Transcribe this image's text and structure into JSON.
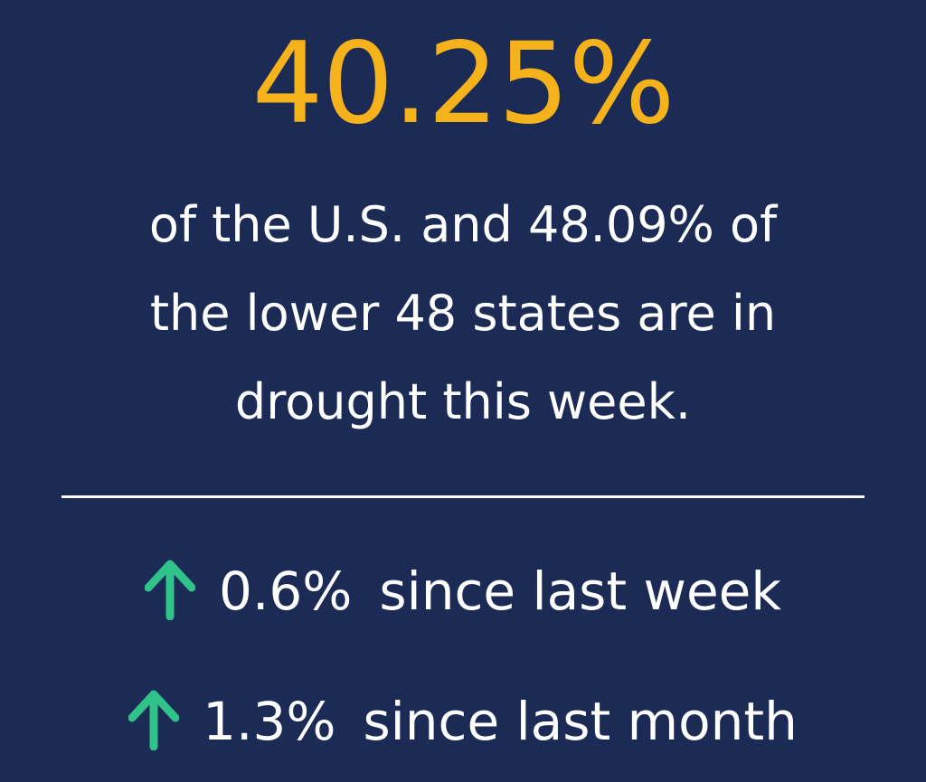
{
  "headline": {
    "value": "40.25%"
  },
  "description": {
    "line1": "of the U.S. and 48.09% of",
    "line2": "the lower 48 states are in",
    "line3": "drought this week."
  },
  "changes": [
    {
      "icon": "arrow-up-icon",
      "value": "0.6%",
      "label": "since last week"
    },
    {
      "icon": "arrow-up-icon",
      "value": "1.3%",
      "label": "since last month"
    }
  ],
  "colors": {
    "background": "#1c2b56",
    "headline": "#f6b21a",
    "text": "#ffffff",
    "arrow": "#2fc38a"
  }
}
